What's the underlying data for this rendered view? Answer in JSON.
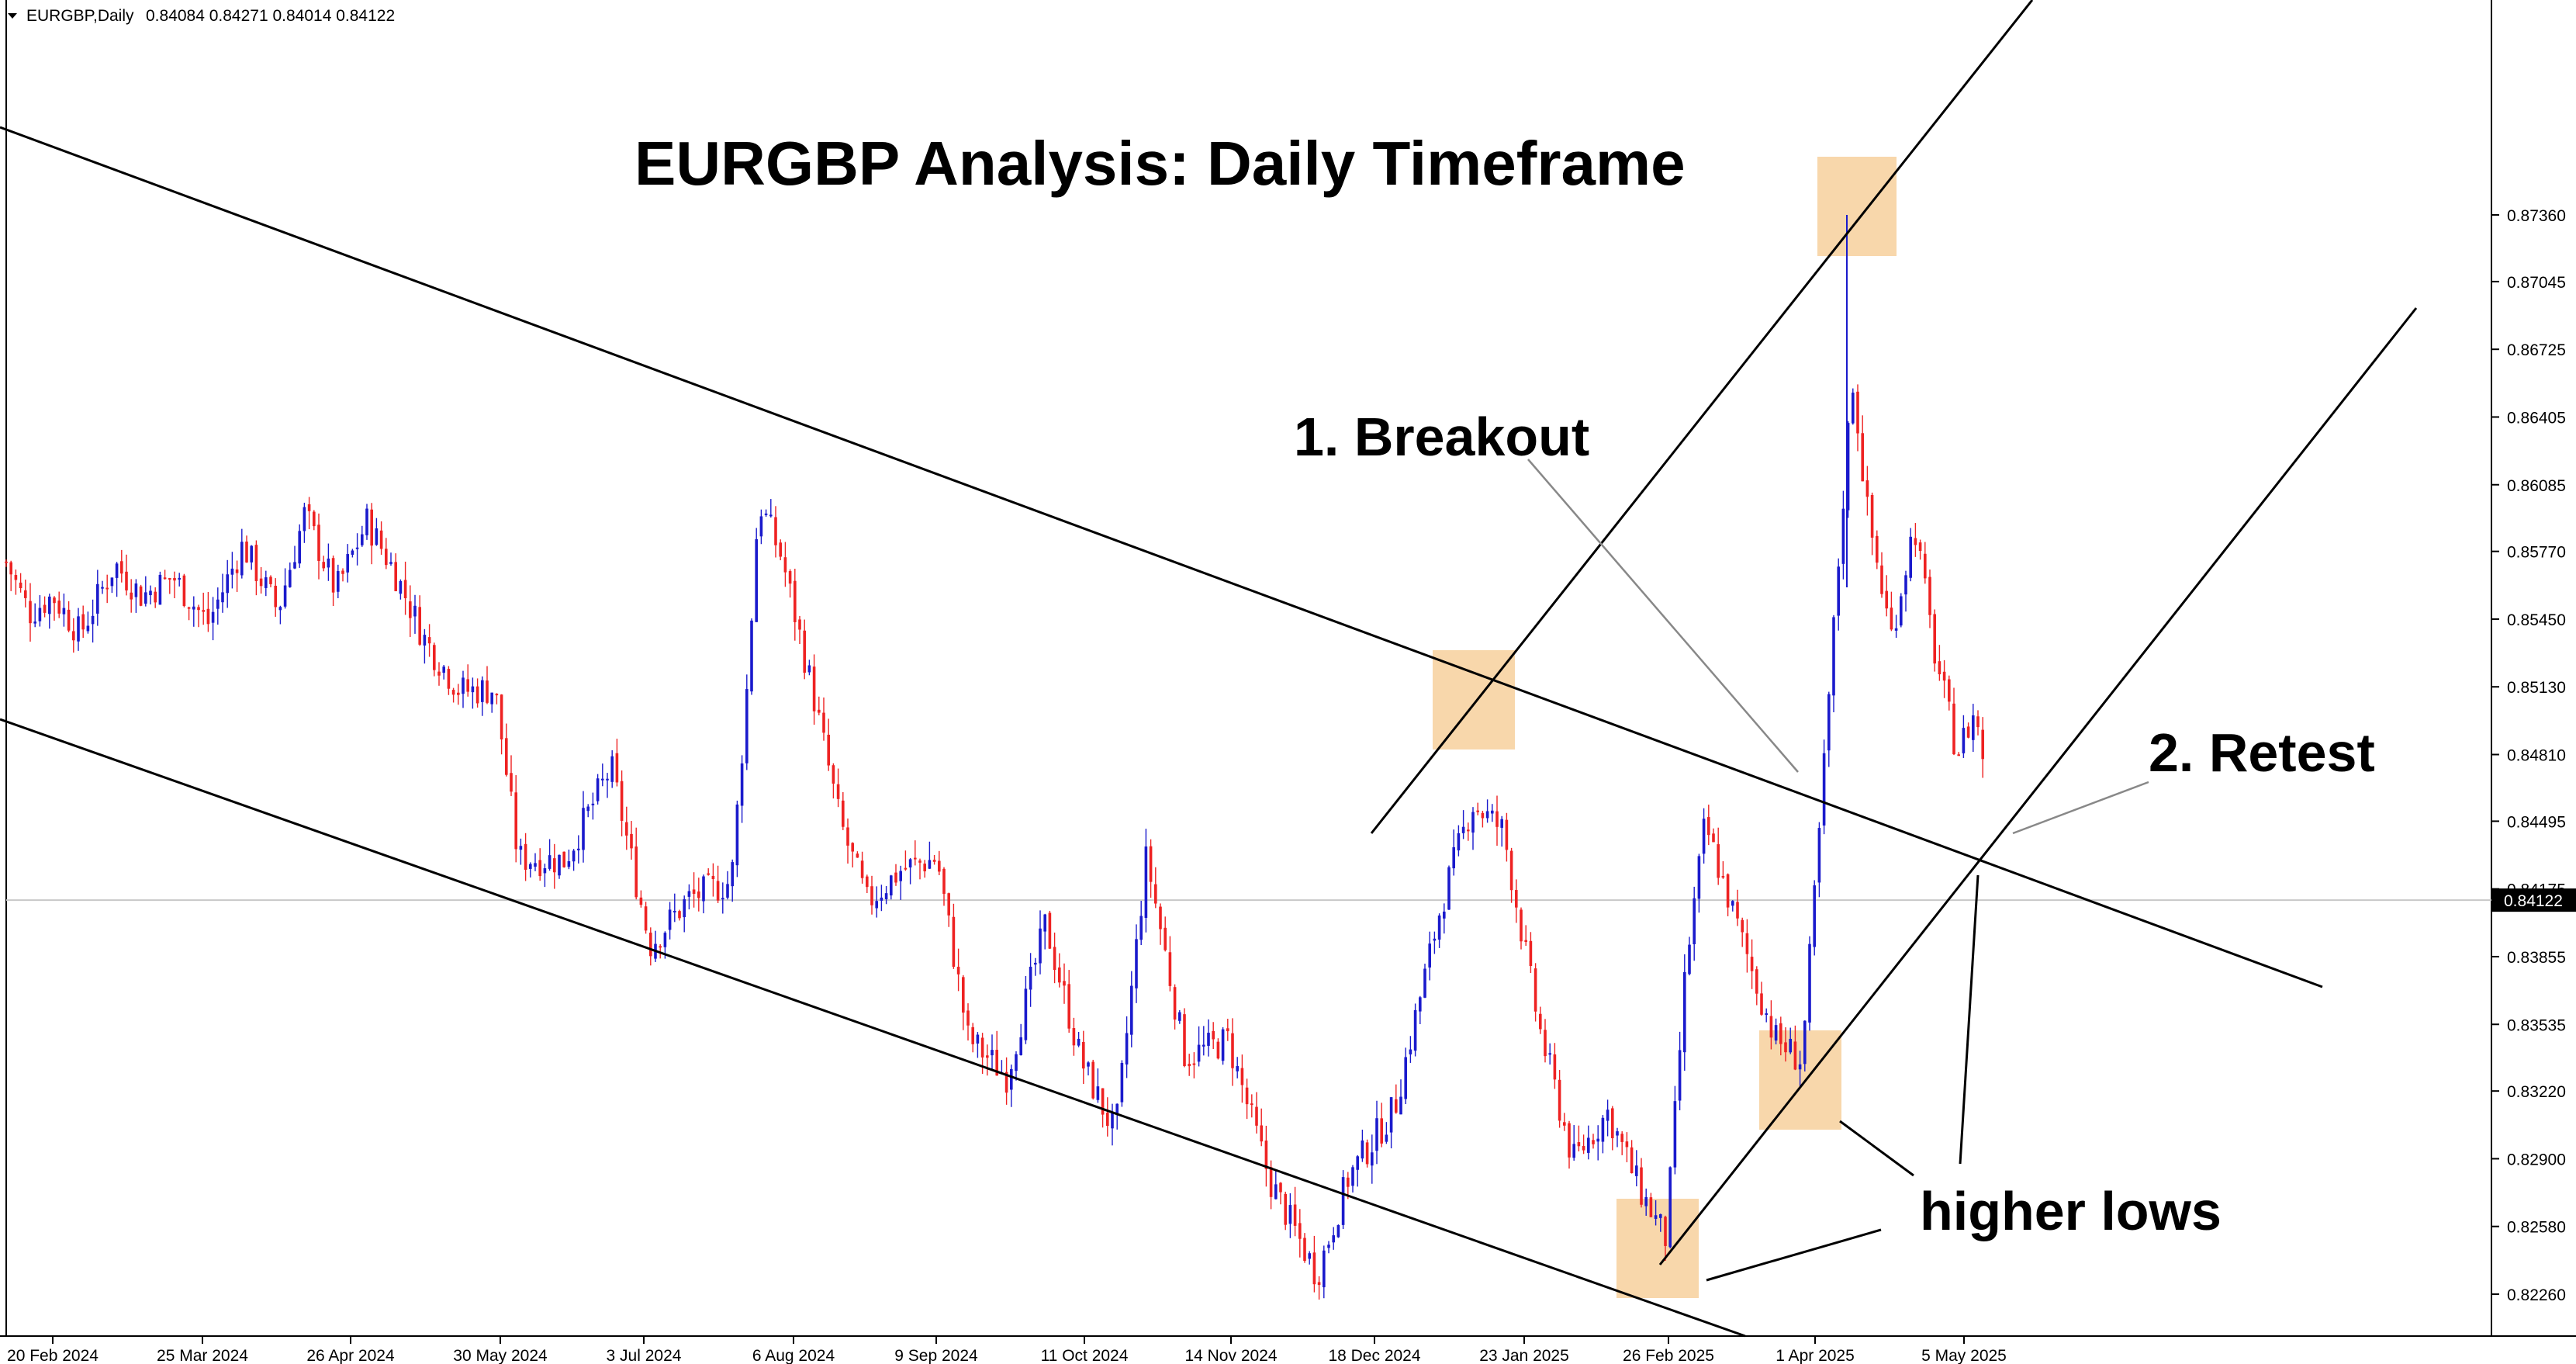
{
  "header": {
    "symbol": "EURGBP,Daily",
    "ohlc": "0.84084 0.84271 0.84014 0.84122"
  },
  "colors": {
    "bull": "#1a1acc",
    "bear": "#ee2222",
    "highlight": "#f5c98f",
    "line": "#000000",
    "current_price_line": "#c8c8c8"
  },
  "chart_data": {
    "type": "candlestick",
    "title": "EURGBP Analysis: Daily Timeframe",
    "current_price": 0.84122,
    "current_price_label": "0.84122",
    "y_ticks": [
      "0.87360",
      "0.87045",
      "0.86725",
      "0.86405",
      "0.86085",
      "0.85770",
      "0.85450",
      "0.85130",
      "0.84810",
      "0.84495",
      "0.84175",
      "0.83855",
      "0.83535",
      "0.83220",
      "0.82900",
      "0.82580",
      "0.82260"
    ],
    "ylim": [
      0.8208,
      0.8768
    ],
    "x_ticks": [
      "20 Feb 2024",
      "25 Mar 2024",
      "26 Apr 2024",
      "30 May 2024",
      "3 Jul 2024",
      "6 Aug 2024",
      "9 Sep 2024",
      "11 Oct 2024",
      "14 Nov 2024",
      "18 Dec 2024",
      "23 Jan 2025",
      "26 Feb 2025",
      "1 Apr 2025",
      "5 May 2025"
    ],
    "annotations": {
      "breakout": "1. Breakout",
      "retest": "2. Retest",
      "higher_lows": "higher lows"
    },
    "key_levels": {
      "first_highlighted_low": 0.8242,
      "second_highlighted_low": 0.8301,
      "breakout_high": 0.8474,
      "peak": 0.8736
    }
  }
}
